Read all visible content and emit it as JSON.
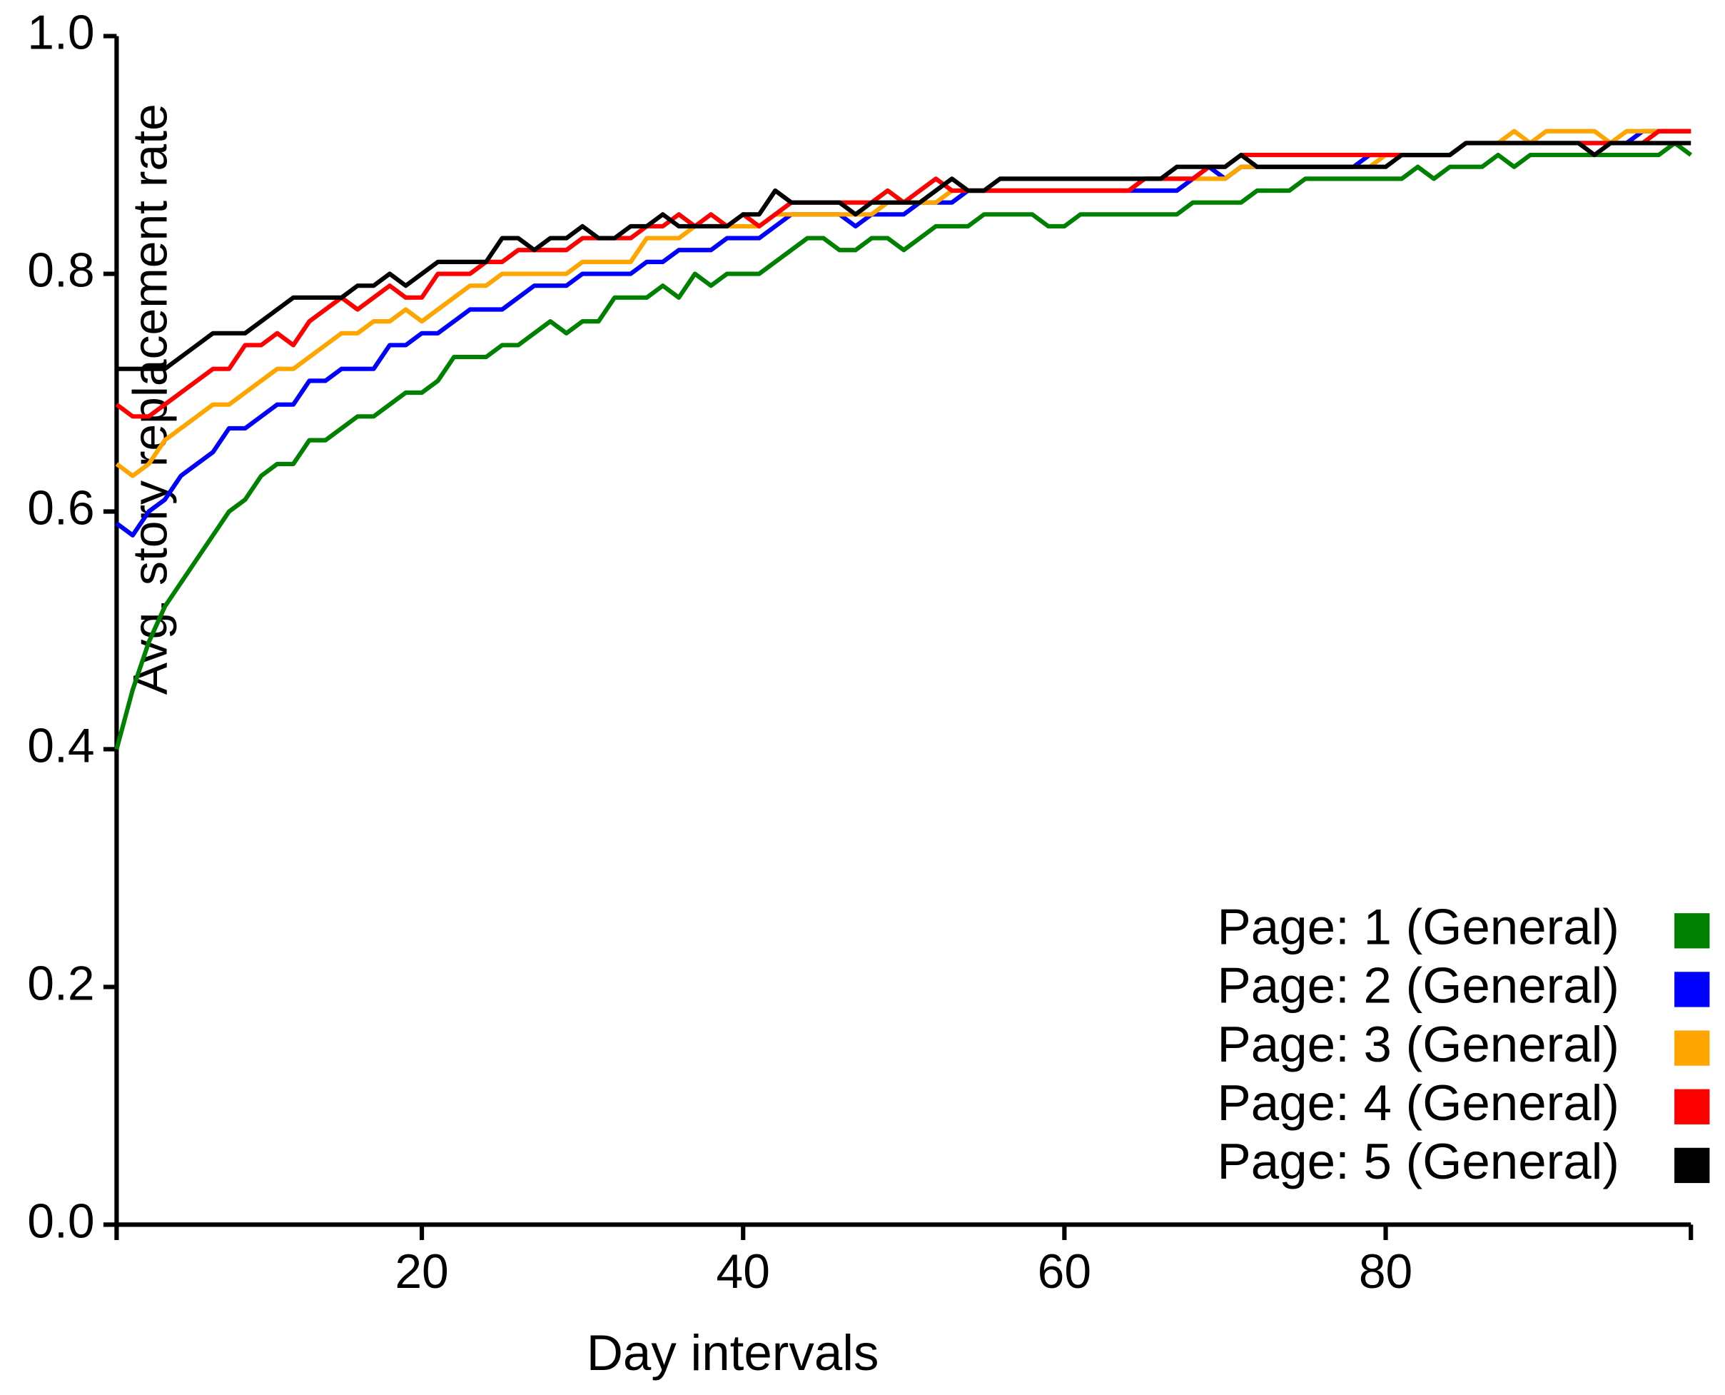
{
  "chart_data": {
    "type": "line",
    "xlabel": "Day intervals",
    "ylabel": "Avg. story replacement rate",
    "x": [
      1,
      2,
      3,
      4,
      5,
      6,
      7,
      8,
      9,
      10,
      11,
      12,
      13,
      14,
      15,
      16,
      17,
      18,
      19,
      20,
      21,
      22,
      23,
      24,
      25,
      26,
      27,
      28,
      29,
      30,
      31,
      32,
      33,
      34,
      35,
      36,
      37,
      38,
      39,
      40,
      41,
      42,
      43,
      44,
      45,
      46,
      47,
      48,
      49,
      50,
      51,
      52,
      53,
      54,
      55,
      56,
      57,
      58,
      59,
      60,
      61,
      62,
      63,
      64,
      65,
      66,
      67,
      68,
      69,
      70,
      71,
      72,
      73,
      74,
      75,
      76,
      77,
      78,
      79,
      80,
      81,
      82,
      83,
      84,
      85,
      86,
      87,
      88,
      89,
      90,
      91,
      92,
      93,
      94,
      95,
      96,
      97,
      98,
      99
    ],
    "series": [
      {
        "name": "Page: 1 (General)",
        "color": "#008000",
        "values": [
          0.4,
          0.45,
          0.49,
          0.52,
          0.54,
          0.56,
          0.58,
          0.6,
          0.61,
          0.63,
          0.64,
          0.64,
          0.66,
          0.66,
          0.67,
          0.68,
          0.68,
          0.69,
          0.7,
          0.7,
          0.71,
          0.73,
          0.73,
          0.73,
          0.74,
          0.74,
          0.75,
          0.76,
          0.75,
          0.76,
          0.76,
          0.78,
          0.78,
          0.78,
          0.79,
          0.78,
          0.8,
          0.79,
          0.8,
          0.8,
          0.8,
          0.81,
          0.82,
          0.83,
          0.83,
          0.82,
          0.82,
          0.83,
          0.83,
          0.82,
          0.83,
          0.84,
          0.84,
          0.84,
          0.85,
          0.85,
          0.85,
          0.85,
          0.84,
          0.84,
          0.85,
          0.85,
          0.85,
          0.85,
          0.85,
          0.85,
          0.85,
          0.86,
          0.86,
          0.86,
          0.86,
          0.87,
          0.87,
          0.87,
          0.88,
          0.88,
          0.88,
          0.88,
          0.88,
          0.88,
          0.88,
          0.89,
          0.88,
          0.89,
          0.89,
          0.89,
          0.9,
          0.89,
          0.9,
          0.9,
          0.9,
          0.9,
          0.9,
          0.9,
          0.9,
          0.9,
          0.9,
          0.91,
          0.9
        ]
      },
      {
        "name": "Page: 2 (General)",
        "color": "#0000ff",
        "values": [
          0.59,
          0.58,
          0.6,
          0.61,
          0.63,
          0.64,
          0.65,
          0.67,
          0.67,
          0.68,
          0.69,
          0.69,
          0.71,
          0.71,
          0.72,
          0.72,
          0.72,
          0.74,
          0.74,
          0.75,
          0.75,
          0.76,
          0.77,
          0.77,
          0.77,
          0.78,
          0.79,
          0.79,
          0.79,
          0.8,
          0.8,
          0.8,
          0.8,
          0.81,
          0.81,
          0.82,
          0.82,
          0.82,
          0.83,
          0.83,
          0.83,
          0.84,
          0.85,
          0.85,
          0.85,
          0.85,
          0.84,
          0.85,
          0.85,
          0.85,
          0.86,
          0.86,
          0.86,
          0.87,
          0.87,
          0.87,
          0.87,
          0.87,
          0.87,
          0.87,
          0.87,
          0.87,
          0.87,
          0.87,
          0.87,
          0.87,
          0.87,
          0.88,
          0.89,
          0.88,
          0.89,
          0.89,
          0.89,
          0.89,
          0.89,
          0.89,
          0.89,
          0.89,
          0.9,
          0.9,
          0.9,
          0.9,
          0.9,
          0.9,
          0.91,
          0.91,
          0.91,
          0.91,
          0.91,
          0.91,
          0.91,
          0.91,
          0.91,
          0.91,
          0.91,
          0.92,
          0.92,
          0.92,
          0.92
        ]
      },
      {
        "name": "Page: 3 (General)",
        "color": "#ffa500",
        "values": [
          0.64,
          0.63,
          0.64,
          0.66,
          0.67,
          0.68,
          0.69,
          0.69,
          0.7,
          0.71,
          0.72,
          0.72,
          0.73,
          0.74,
          0.75,
          0.75,
          0.76,
          0.76,
          0.77,
          0.76,
          0.77,
          0.78,
          0.79,
          0.79,
          0.8,
          0.8,
          0.8,
          0.8,
          0.8,
          0.81,
          0.81,
          0.81,
          0.81,
          0.83,
          0.83,
          0.83,
          0.84,
          0.84,
          0.84,
          0.84,
          0.84,
          0.85,
          0.85,
          0.85,
          0.85,
          0.85,
          0.85,
          0.85,
          0.86,
          0.86,
          0.86,
          0.86,
          0.87,
          0.87,
          0.87,
          0.87,
          0.87,
          0.87,
          0.87,
          0.87,
          0.87,
          0.87,
          0.87,
          0.87,
          0.88,
          0.88,
          0.88,
          0.88,
          0.88,
          0.88,
          0.89,
          0.89,
          0.89,
          0.89,
          0.89,
          0.89,
          0.89,
          0.89,
          0.89,
          0.9,
          0.9,
          0.9,
          0.9,
          0.9,
          0.91,
          0.91,
          0.91,
          0.92,
          0.91,
          0.92,
          0.92,
          0.92,
          0.92,
          0.91,
          0.92,
          0.92,
          0.92,
          0.92,
          0.92
        ]
      },
      {
        "name": "Page: 4 (General)",
        "color": "#ff0000",
        "values": [
          0.69,
          0.68,
          0.68,
          0.69,
          0.7,
          0.71,
          0.72,
          0.72,
          0.74,
          0.74,
          0.75,
          0.74,
          0.76,
          0.77,
          0.78,
          0.77,
          0.78,
          0.79,
          0.78,
          0.78,
          0.8,
          0.8,
          0.8,
          0.81,
          0.81,
          0.82,
          0.82,
          0.82,
          0.82,
          0.83,
          0.83,
          0.83,
          0.83,
          0.84,
          0.84,
          0.85,
          0.84,
          0.85,
          0.84,
          0.85,
          0.84,
          0.85,
          0.86,
          0.86,
          0.86,
          0.86,
          0.86,
          0.86,
          0.87,
          0.86,
          0.87,
          0.88,
          0.87,
          0.87,
          0.87,
          0.87,
          0.87,
          0.87,
          0.87,
          0.87,
          0.87,
          0.87,
          0.87,
          0.87,
          0.88,
          0.88,
          0.88,
          0.88,
          0.89,
          0.89,
          0.9,
          0.9,
          0.9,
          0.9,
          0.9,
          0.9,
          0.9,
          0.9,
          0.9,
          0.9,
          0.9,
          0.9,
          0.9,
          0.9,
          0.91,
          0.91,
          0.91,
          0.91,
          0.91,
          0.91,
          0.91,
          0.91,
          0.91,
          0.91,
          0.91,
          0.91,
          0.92,
          0.92,
          0.92
        ]
      },
      {
        "name": "Page: 5 (General)",
        "color": "#000000",
        "values": [
          0.72,
          0.72,
          0.72,
          0.72,
          0.73,
          0.74,
          0.75,
          0.75,
          0.75,
          0.76,
          0.77,
          0.78,
          0.78,
          0.78,
          0.78,
          0.79,
          0.79,
          0.8,
          0.79,
          0.8,
          0.81,
          0.81,
          0.81,
          0.81,
          0.83,
          0.83,
          0.82,
          0.83,
          0.83,
          0.84,
          0.83,
          0.83,
          0.84,
          0.84,
          0.85,
          0.84,
          0.84,
          0.84,
          0.84,
          0.85,
          0.85,
          0.87,
          0.86,
          0.86,
          0.86,
          0.86,
          0.85,
          0.86,
          0.86,
          0.86,
          0.86,
          0.87,
          0.88,
          0.87,
          0.87,
          0.88,
          0.88,
          0.88,
          0.88,
          0.88,
          0.88,
          0.88,
          0.88,
          0.88,
          0.88,
          0.88,
          0.89,
          0.89,
          0.89,
          0.89,
          0.9,
          0.89,
          0.89,
          0.89,
          0.89,
          0.89,
          0.89,
          0.89,
          0.89,
          0.89,
          0.9,
          0.9,
          0.9,
          0.9,
          0.91,
          0.91,
          0.91,
          0.91,
          0.91,
          0.91,
          0.91,
          0.91,
          0.9,
          0.91,
          0.91,
          0.91,
          0.91,
          0.91,
          0.91
        ]
      }
    ],
    "xlim": [
      1,
      99
    ],
    "ylim": [
      0,
      1
    ],
    "xticks": [
      20,
      40,
      60,
      80
    ],
    "yticks": [
      {
        "value": 0,
        "label": "0.0"
      },
      0.2,
      0.4,
      0.6,
      0.8,
      {
        "value": 1,
        "label": "1.0"
      }
    ],
    "grid": false,
    "legend": "lower right"
  }
}
